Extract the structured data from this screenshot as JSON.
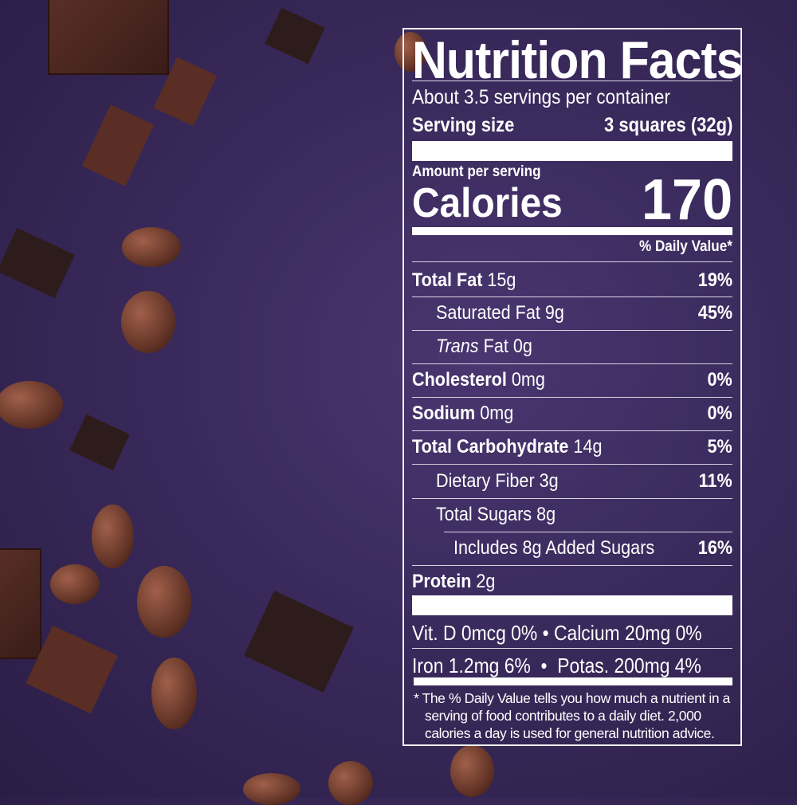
{
  "label": {
    "title": "Nutrition Facts",
    "servings_per_container": "About 3.5 servings per container",
    "serving_size_label": "Serving size",
    "serving_size_value": "3 squares (32g)",
    "amount_per_serving": "Amount per serving",
    "calories_label": "Calories",
    "calories_value": "170",
    "daily_value_header": "% Daily Value*",
    "nutrients": [
      {
        "name": "Total Fat",
        "amount": "15g",
        "dv": "19%"
      },
      {
        "name": "Saturated Fat",
        "amount": "9g",
        "dv": "45%"
      },
      {
        "name": "Trans",
        "name_suffix": "Fat",
        "amount": "0g",
        "dv": ""
      },
      {
        "name": "Cholesterol",
        "amount": "0mg",
        "dv": "0%"
      },
      {
        "name": "Sodium",
        "amount": "0mg",
        "dv": "0%"
      },
      {
        "name": "Total Carbohydrate",
        "amount": "14g",
        "dv": "5%"
      },
      {
        "name": "Dietary Fiber",
        "amount": "3g",
        "dv": "11%"
      },
      {
        "name": "Total Sugars",
        "amount": "8g",
        "dv": ""
      },
      {
        "name": "Includes 8g Added Sugars",
        "amount": "",
        "dv": "16%"
      },
      {
        "name": "Protein",
        "amount": "2g",
        "dv": ""
      }
    ],
    "vitamins_row1": "Vit. D 0mcg 0% • Calcium 20mg 0%",
    "vitamins_row2": "Iron 1.2mg 6%  •  Potas. 200mg 4%",
    "footnote": "* The % Daily Value tells you how much a nutrient in a serving of food contributes to a daily diet. 2,000 calories a day is used for general nutrition advice."
  },
  "colors": {
    "background": "#3a2a5c",
    "text": "#ffffff"
  }
}
